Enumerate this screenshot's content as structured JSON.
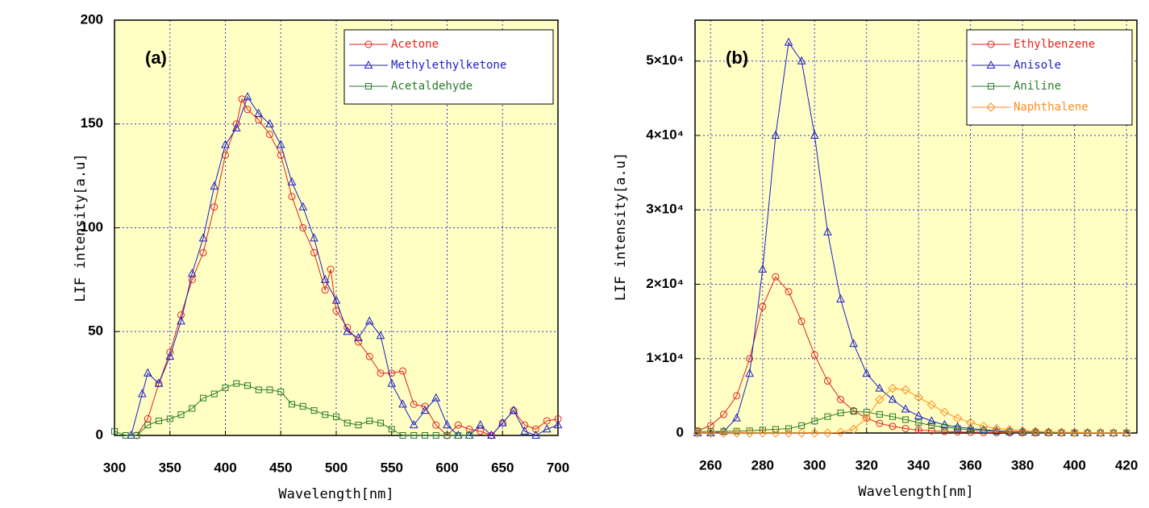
{
  "chart_data": [
    {
      "type": "line",
      "annotation": "(a)",
      "x_label": "Wavelength[nm]",
      "y_label": "LIF intensity[a.u]",
      "xlim": [
        300,
        700
      ],
      "xticks": [
        300,
        350,
        400,
        450,
        500,
        550,
        600,
        650,
        700
      ],
      "ylim": [
        0,
        200
      ],
      "yticks": [
        0,
        50,
        100,
        150,
        200
      ],
      "grid": true,
      "legend": "upper right",
      "background": "#ffffc4",
      "series": [
        {
          "name": "Acetone",
          "color": "#e3201b",
          "marker": "circle",
          "x": [
            320,
            330,
            340,
            350,
            360,
            370,
            380,
            390,
            400,
            410,
            415,
            420,
            430,
            440,
            450,
            460,
            470,
            480,
            490,
            495,
            500,
            510,
            520,
            530,
            540,
            550,
            560,
            570,
            580,
            590,
            600,
            610,
            620,
            630,
            640,
            650,
            660,
            670,
            680,
            690,
            700
          ],
          "values": [
            0,
            8,
            25,
            40,
            58,
            75,
            88,
            110,
            135,
            150,
            162,
            157,
            152,
            145,
            135,
            115,
            100,
            88,
            70,
            80,
            60,
            52,
            45,
            38,
            30,
            30,
            31,
            15,
            14,
            5,
            0,
            5,
            3,
            2,
            0,
            6,
            12,
            5,
            3,
            7,
            8
          ]
        },
        {
          "name": "Methylethylketone",
          "color": "#1c1cc8",
          "marker": "triangle",
          "x": [
            315,
            325,
            330,
            340,
            350,
            360,
            370,
            380,
            390,
            400,
            410,
            420,
            430,
            440,
            450,
            460,
            470,
            480,
            490,
            500,
            510,
            520,
            530,
            540,
            550,
            560,
            570,
            580,
            590,
            600,
            610,
            620,
            630,
            640,
            650,
            660,
            670,
            680,
            690,
            700
          ],
          "values": [
            0,
            20,
            30,
            25,
            38,
            55,
            78,
            95,
            120,
            140,
            148,
            163,
            155,
            150,
            140,
            122,
            110,
            95,
            75,
            65,
            50,
            47,
            55,
            48,
            25,
            15,
            5,
            12,
            18,
            5,
            0,
            0,
            5,
            0,
            6,
            12,
            2,
            0,
            3,
            5
          ]
        },
        {
          "name": "Acetaldehyde",
          "color": "#2a7a2a",
          "marker": "square",
          "x": [
            300,
            310,
            320,
            330,
            340,
            350,
            360,
            370,
            380,
            390,
            400,
            410,
            420,
            430,
            440,
            450,
            460,
            470,
            480,
            490,
            500,
            510,
            520,
            530,
            540,
            550,
            560,
            570,
            580,
            590,
            600,
            610,
            620
          ],
          "values": [
            2,
            0,
            0,
            5,
            7,
            8,
            10,
            13,
            18,
            20,
            23,
            25,
            24,
            22,
            22,
            21,
            15,
            14,
            12,
            10,
            9,
            6,
            5,
            7,
            6,
            3,
            0,
            0,
            0,
            0,
            0,
            0,
            0
          ]
        }
      ]
    },
    {
      "type": "line",
      "annotation": "(b)",
      "x_label": "Wavelength[nm]",
      "y_label": "LIF intensity[a.u]",
      "xlim": [
        254,
        424
      ],
      "xticks": [
        260,
        280,
        300,
        320,
        340,
        360,
        380,
        400,
        420
      ],
      "ylim": [
        0,
        55500
      ],
      "yticks": [
        0,
        {
          "value": 10000,
          "label": "1×10⁴"
        },
        {
          "value": 20000,
          "label": "2×10⁴"
        },
        {
          "value": 30000,
          "label": "3×10⁴"
        },
        {
          "value": 40000,
          "label": "4×10⁴"
        },
        {
          "value": 50000,
          "label": "5×10⁴"
        }
      ],
      "grid": true,
      "legend": "upper right",
      "background": "#ffffc4",
      "x": [
        255,
        260,
        265,
        270,
        275,
        280,
        285,
        290,
        295,
        300,
        305,
        310,
        315,
        320,
        325,
        330,
        335,
        340,
        345,
        350,
        355,
        360,
        365,
        370,
        375,
        380,
        385,
        390,
        395,
        400,
        405,
        410,
        415,
        420
      ],
      "series": [
        {
          "name": "Ethylbenzene",
          "color": "#e3201b",
          "marker": "circle",
          "values": [
            300,
            1000,
            2500,
            5000,
            10000,
            17000,
            21000,
            19000,
            15000,
            10500,
            7000,
            4500,
            3000,
            2000,
            1300,
            900,
            600,
            400,
            300,
            200,
            150,
            100,
            80,
            60,
            40,
            30,
            20,
            15,
            10,
            10,
            5,
            5,
            5,
            5
          ]
        },
        {
          "name": "Anisole",
          "color": "#1c1cc8",
          "marker": "triangle",
          "values": [
            0,
            0,
            200,
            2000,
            8000,
            22000,
            40000,
            52500,
            50000,
            40000,
            27000,
            18000,
            12000,
            8000,
            6000,
            4500,
            3200,
            2300,
            1600,
            1100,
            800,
            600,
            450,
            300,
            200,
            150,
            100,
            80,
            60,
            40,
            30,
            20,
            15,
            10
          ]
        },
        {
          "name": "Aniline",
          "color": "#2a7a2a",
          "marker": "square",
          "values": [
            200,
            200,
            200,
            250,
            300,
            400,
            500,
            600,
            1000,
            1600,
            2200,
            2700,
            2900,
            2800,
            2500,
            2200,
            1800,
            1400,
            1000,
            800,
            600,
            400,
            300,
            200,
            150,
            100,
            80,
            60,
            40,
            30,
            20,
            15,
            10,
            10
          ]
        },
        {
          "name": "Naphthalene",
          "color": "#ff8c1e",
          "marker": "diamond",
          "values": [
            0,
            0,
            0,
            0,
            0,
            0,
            0,
            0,
            0,
            0,
            0,
            100,
            500,
            2000,
            4500,
            6000,
            5800,
            4800,
            3800,
            2800,
            2000,
            1400,
            900,
            600,
            450,
            300,
            220,
            150,
            110,
            80,
            60,
            40,
            30,
            20
          ]
        }
      ]
    }
  ]
}
